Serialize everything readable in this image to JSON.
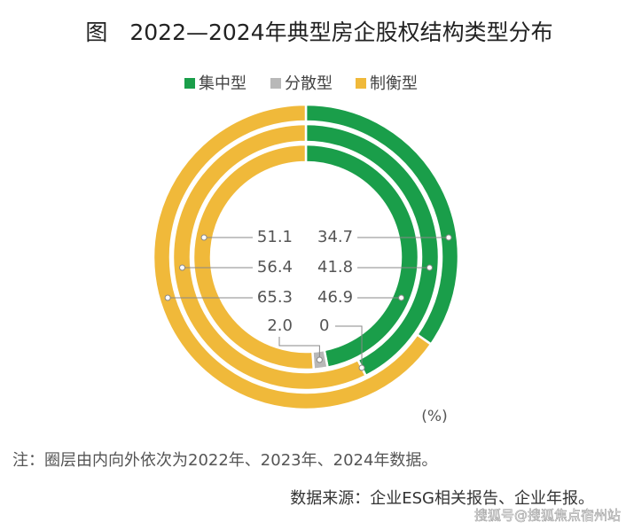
{
  "chart_data": {
    "type": "nested-donut",
    "title": "图　2022—2024年典型房企股权结构类型分布",
    "categories": [
      "2022",
      "2023",
      "2024"
    ],
    "series": [
      {
        "name": "集中型",
        "color": "#1a9e4a",
        "values": [
          46.9,
          41.8,
          34.7
        ]
      },
      {
        "name": "分散型",
        "color": "#b8b8b8",
        "values": [
          2.0,
          0,
          0
        ],
        "value_labels": [
          "2.0",
          "0",
          null
        ]
      },
      {
        "name": "制衡型",
        "color": "#f0b93a",
        "values": [
          51.1,
          56.4,
          65.3
        ]
      }
    ],
    "unit_label": "(%)",
    "note": "注：圈层由内向外依次为2022年、2023年、2024年数据。",
    "source": "数据来源：企业ESG相关报告、企业年报。",
    "watermark": "搜狐号@搜狐焦点宿州站"
  }
}
